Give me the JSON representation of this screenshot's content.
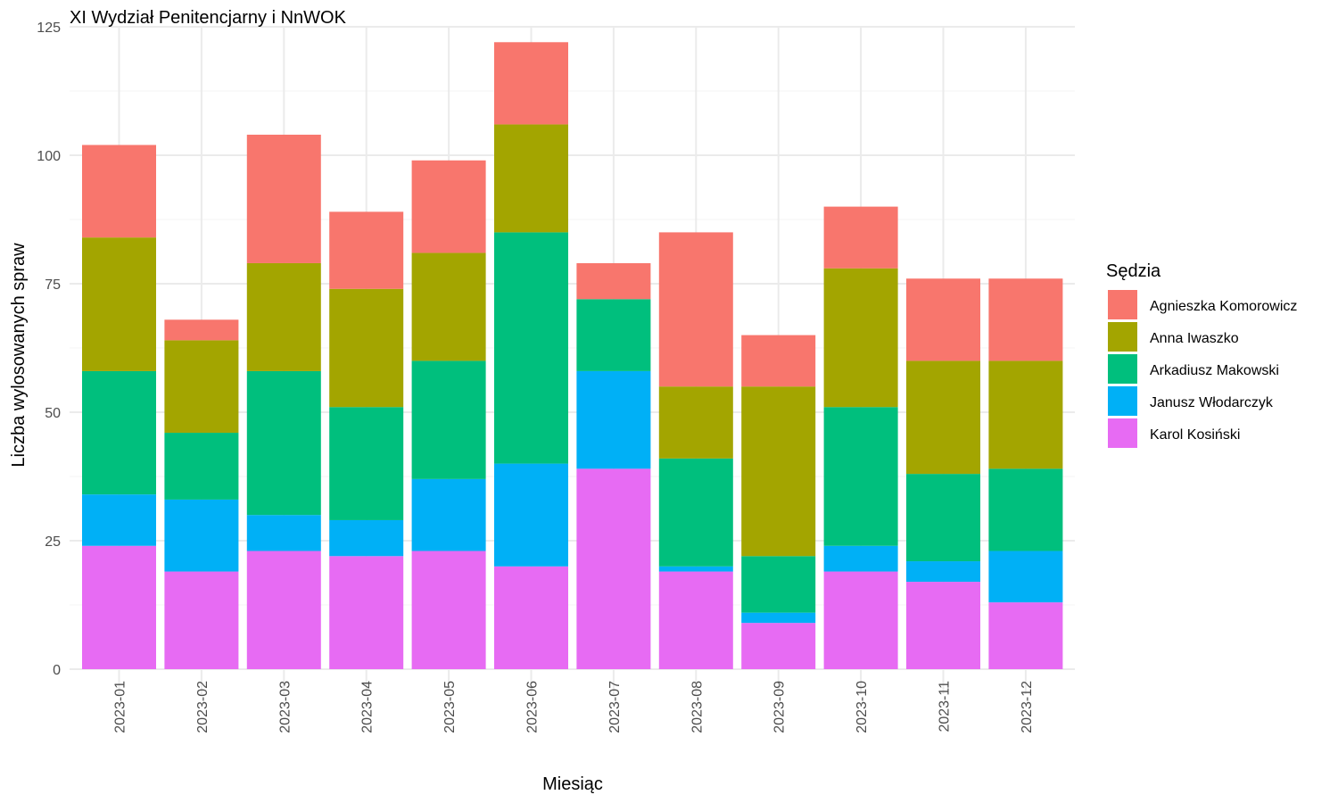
{
  "chart_data": {
    "type": "bar",
    "stacked": true,
    "title": "XI Wydział Penitencjarny i NnWOK",
    "xlabel": "Miesiąc",
    "ylabel": "Liczba wylosowanych spraw",
    "ylim": [
      0,
      125
    ],
    "yticks": [
      0,
      25,
      50,
      75,
      100,
      125
    ],
    "grid": true,
    "legend_title": "Sędzia",
    "legend_position": "right",
    "categories": [
      "2023-01",
      "2023-02",
      "2023-03",
      "2023-04",
      "2023-05",
      "2023-06",
      "2023-07",
      "2023-08",
      "2023-09",
      "2023-10",
      "2023-11",
      "2023-12"
    ],
    "series": [
      {
        "name": "Karol Kosiński",
        "color": "#E76BF3",
        "values": [
          24,
          19,
          23,
          22,
          23,
          20,
          39,
          19,
          9,
          19,
          17,
          13
        ]
      },
      {
        "name": "Janusz Włodarczyk",
        "color": "#00B0F6",
        "values": [
          10,
          14,
          7,
          7,
          14,
          20,
          19,
          1,
          2,
          5,
          4,
          10
        ]
      },
      {
        "name": "Arkadiusz Makowski",
        "color": "#00BF7D",
        "values": [
          24,
          13,
          28,
          22,
          23,
          45,
          14,
          21,
          11,
          27,
          17,
          16
        ]
      },
      {
        "name": "Anna Iwaszko",
        "color": "#A3A500",
        "values": [
          26,
          18,
          21,
          23,
          21,
          21,
          0,
          14,
          33,
          27,
          22,
          21
        ]
      },
      {
        "name": "Agnieszka Komorowicz",
        "color": "#F8766D",
        "values": [
          18,
          4,
          25,
          15,
          18,
          16,
          7,
          30,
          10,
          12,
          16,
          16
        ]
      }
    ],
    "legend_order": [
      "Agnieszka Komorowicz",
      "Anna Iwaszko",
      "Arkadiusz Makowski",
      "Janusz Włodarczyk",
      "Karol Kosiński"
    ]
  }
}
